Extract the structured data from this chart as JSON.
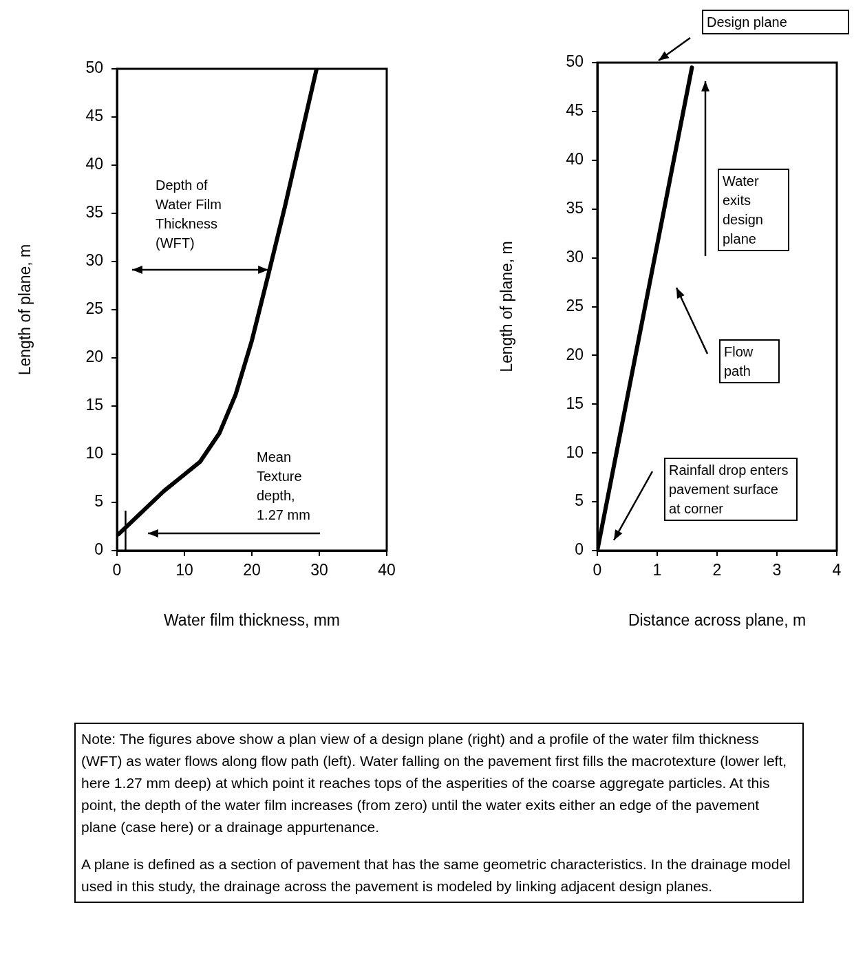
{
  "chart_data": [
    {
      "type": "line",
      "xlabel": "Water film thickness, mm",
      "ylabel": "Length of plane, m",
      "xlim": [
        0,
        40
      ],
      "ylim": [
        0,
        50
      ],
      "xticks": [
        0,
        10,
        20,
        30,
        40
      ],
      "yticks": [
        0,
        5,
        10,
        15,
        20,
        25,
        30,
        35,
        40,
        45,
        50
      ],
      "grid": false,
      "legend": false,
      "marker": "none",
      "line_style": "solid",
      "series": [
        {
          "color": "#000000",
          "x": [
            0.24,
            7.0,
            12.3,
            15.2,
            17.6,
            20.0,
            22.5,
            24.9,
            27.3,
            29.6
          ],
          "values": [
            1.7,
            6.2,
            9.2,
            12.2,
            16.2,
            21.8,
            28.8,
            35.7,
            43.0,
            50
          ]
        }
      ],
      "ref_lines": [
        {
          "axis": "x",
          "value": 1.27
        }
      ],
      "annotations": [
        "Depth of Water Film Thickness (WFT)",
        "Mean Texture depth, 1.27 mm"
      ]
    },
    {
      "type": "line",
      "xlabel": "Distance across plane, m",
      "ylabel": "Length of plane, m",
      "xlim": [
        0,
        4
      ],
      "ylim": [
        0,
        50
      ],
      "xticks": [
        0,
        1,
        2,
        3,
        4
      ],
      "yticks": [
        0,
        5,
        10,
        15,
        20,
        25,
        30,
        35,
        40,
        45,
        50
      ],
      "grid": false,
      "legend": false,
      "marker": "none",
      "line_style": "solid",
      "series": [
        {
          "color": "#000000",
          "x": [
            0,
            1.58
          ],
          "values": [
            0,
            49.5
          ]
        }
      ],
      "annotations": [
        "Design plane",
        "Water exits design plane",
        "Flow path",
        "Rainfall drop enters pavement surface at corner",
        "Note: The figures above show a plan view of a design plane (right) and a profile of the water film thickness (WFT) as water flows along flow path (left).  Water falling on the pavement first fills the macrotexture (lower left, here 1.27 mm deep) at which point it reaches tops of the asperities of the coarse aggregate particles. At this point, the depth of the water film increases (from zero) until the water exits either an edge of the pavement plane (case here) or a drainage appurtenance.",
        "A plane is defined as a section of pavement that has the same geometric characteristics. In the drainage model used in this study, the drainage across the pavement is modeled by linking adjacent design planes."
      ]
    }
  ]
}
